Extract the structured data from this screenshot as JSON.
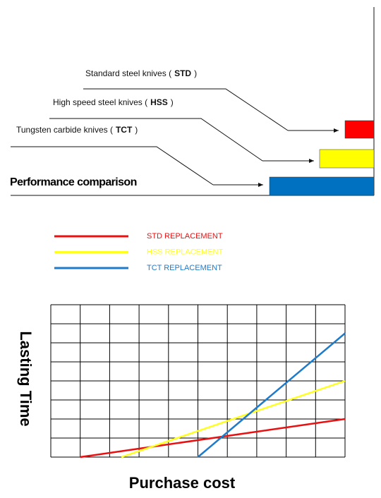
{
  "diagram": {
    "title": "Performance comparison",
    "items": [
      {
        "prefix": "Standard steel knives (",
        "code": "STD",
        "suffix": ")",
        "color": "#ff0000"
      },
      {
        "prefix": "High speed steel knives (",
        "code": "HSS",
        "suffix": ")",
        "color": "#ffff00"
      },
      {
        "prefix": "Tungsten carbide knives (",
        "code": "TCT",
        "suffix": ")",
        "color": "#0070c0"
      }
    ]
  },
  "chart_data": {
    "type": "line",
    "x_label": "Purchase cost",
    "y_label": "Lasting Time",
    "xlim": [
      0,
      10
    ],
    "ylim": [
      0,
      8
    ],
    "xticks": [
      0,
      1,
      2,
      3,
      4,
      5,
      6,
      7,
      8,
      9,
      10
    ],
    "yticks": [
      0,
      1,
      2,
      3,
      4,
      5,
      6,
      7,
      8
    ],
    "grid": true,
    "series": [
      {
        "name": "STD REPLACEMENT",
        "color": "#e81010",
        "x": [
          1,
          10
        ],
        "values": [
          0,
          2
        ]
      },
      {
        "name": "HSS REPLACEMENT",
        "color": "#ffff20",
        "x": [
          2.4,
          10
        ],
        "values": [
          0,
          4
        ]
      },
      {
        "name": "TCT REPLACEMENT",
        "color": "#1f7ac8",
        "x": [
          5,
          10
        ],
        "values": [
          0,
          6.5
        ]
      }
    ]
  }
}
